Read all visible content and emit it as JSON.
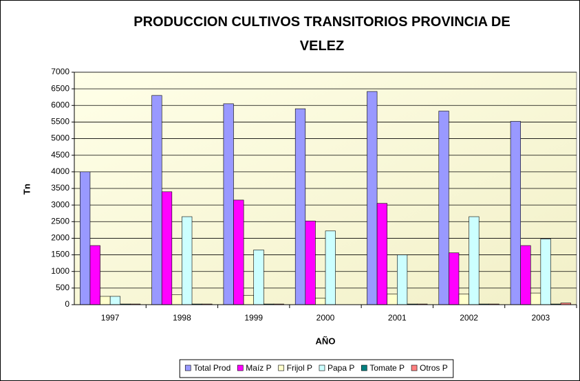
{
  "chart_data": {
    "type": "bar",
    "title": "PRODUCCION CULTIVOS TRANSITORIOS PROVINCIA DE VELEZ",
    "x_label": "AÑO",
    "y_label": "Tn",
    "categories": [
      "1997",
      "1998",
      "1999",
      "2000",
      "2001",
      "2002",
      "2003"
    ],
    "series": [
      {
        "name": "Total Prod",
        "color": "#9999ff",
        "values": [
          4000,
          6300,
          6050,
          5900,
          6420,
          5830,
          5520
        ]
      },
      {
        "name": "Maíz P",
        "color": "#ff00ff",
        "values": [
          1780,
          3400,
          3150,
          2520,
          3050,
          1560,
          1780
        ]
      },
      {
        "name": "Frijol P",
        "color": "#ffffcc",
        "values": [
          250,
          300,
          280,
          200,
          320,
          320,
          350
        ]
      },
      {
        "name": "Papa P",
        "color": "#ccffff",
        "values": [
          250,
          2650,
          1650,
          2220,
          1500,
          2650,
          1980
        ]
      },
      {
        "name": "Tomate P",
        "color": "#008080",
        "values": [
          20,
          20,
          20,
          0,
          20,
          20,
          20
        ]
      },
      {
        "name": "Otros P",
        "color": "#ff8080",
        "values": [
          20,
          20,
          20,
          0,
          20,
          20,
          50
        ]
      }
    ],
    "ylim": [
      0,
      7000
    ],
    "yticks": [
      0,
      500,
      1000,
      1500,
      2000,
      2500,
      3000,
      3500,
      4000,
      4500,
      5000,
      5500,
      6000,
      6500,
      7000
    ],
    "grid": true,
    "legend": "bottom"
  }
}
